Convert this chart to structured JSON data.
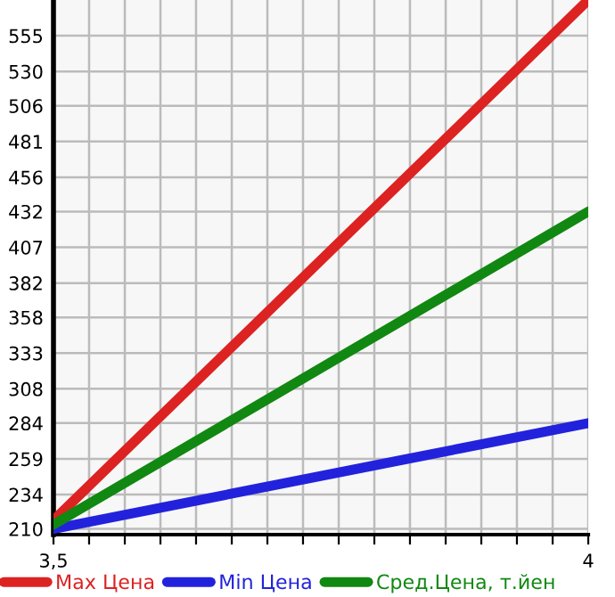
{
  "chart_data": {
    "type": "line",
    "x": [
      3.5,
      4
    ],
    "xlim": [
      3.5,
      4
    ],
    "xticks": [
      {
        "value": 3.5,
        "label": "3,5"
      },
      {
        "value": 3.5333,
        "label": null
      },
      {
        "value": 3.5667,
        "label": null
      },
      {
        "value": 3.6,
        "label": null
      },
      {
        "value": 3.6333,
        "label": null
      },
      {
        "value": 3.6667,
        "label": null
      },
      {
        "value": 3.7,
        "label": null
      },
      {
        "value": 3.7333,
        "label": null
      },
      {
        "value": 3.7667,
        "label": null
      },
      {
        "value": 3.8,
        "label": null
      },
      {
        "value": 3.8333,
        "label": null
      },
      {
        "value": 3.8667,
        "label": null
      },
      {
        "value": 3.9,
        "label": null
      },
      {
        "value": 3.9333,
        "label": null
      },
      {
        "value": 3.9667,
        "label": null
      },
      4
    ],
    "ylim": [
      206,
      580
    ],
    "yticks": [
      210,
      234,
      259,
      284,
      308,
      333,
      358,
      382,
      407,
      432,
      456,
      481,
      506,
      530,
      555
    ],
    "series": [
      {
        "name": "Max Цена",
        "color": "#dd2222",
        "values": [
          216,
          580
        ]
      },
      {
        "name": "Min Цена",
        "color": "#2222dd",
        "values": [
          210,
          284
        ]
      },
      {
        "name": "Сред.Цена, т.йен",
        "color": "#118811",
        "values": [
          213,
          432
        ]
      }
    ],
    "grid": true,
    "legend": "bottom",
    "marker": "none",
    "line_style": "solid"
  }
}
